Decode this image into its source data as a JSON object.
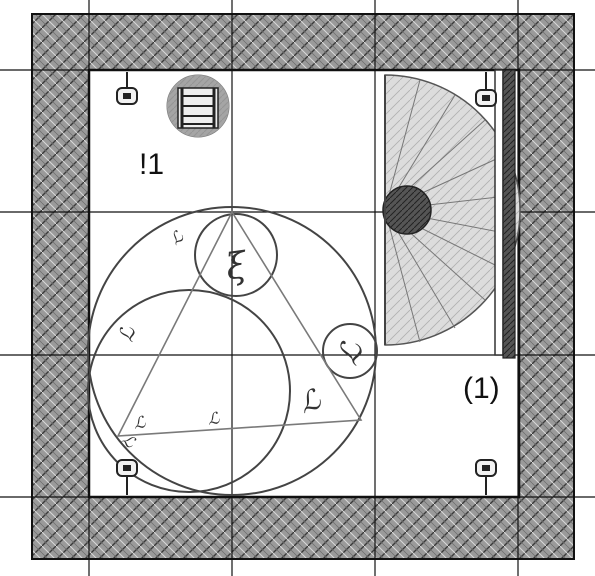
{
  "room_labels": {
    "room_a": "!1",
    "room_b": "(1)"
  },
  "arcane_glyphs": [
    "ξ",
    "ℒ",
    "ℒ",
    "ℒ",
    "ℒ",
    "ℒ",
    "ℒ"
  ],
  "icons": {
    "wall": "stone-wall-texture",
    "light": "wall-sconce-icon",
    "trapdoor": "ladder-trapdoor-icon",
    "stairs": "spiral-staircase-icon",
    "circle": "summoning-circle-icon"
  },
  "colors": {
    "wall": "#8a8a8a",
    "floor": "#ffffff",
    "line": "#111111",
    "circle_line": "#444444",
    "triangle_line": "#7a7a7a"
  }
}
